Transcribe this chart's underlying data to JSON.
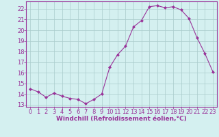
{
  "hours": [
    0,
    1,
    2,
    3,
    4,
    5,
    6,
    7,
    8,
    9,
    10,
    11,
    12,
    13,
    14,
    15,
    16,
    17,
    18,
    19,
    20,
    21,
    22,
    23
  ],
  "values": [
    14.5,
    14.2,
    13.7,
    14.1,
    13.8,
    13.6,
    13.5,
    13.1,
    13.5,
    14.0,
    16.5,
    17.7,
    18.5,
    20.3,
    20.9,
    22.2,
    22.3,
    22.1,
    22.2,
    21.9,
    21.1,
    19.3,
    17.8,
    16.1
  ],
  "line_color": "#993399",
  "marker": "D",
  "marker_size": 2,
  "bg_color": "#d4f0f0",
  "grid_color": "#aacccc",
  "xlabel": "Windchill (Refroidissement éolien,°C)",
  "ylim": [
    12.8,
    22.7
  ],
  "xlim": [
    -0.5,
    23.5
  ],
  "yticks": [
    13,
    14,
    15,
    16,
    17,
    18,
    19,
    20,
    21,
    22
  ],
  "xticks": [
    0,
    1,
    2,
    3,
    4,
    5,
    6,
    7,
    8,
    9,
    10,
    11,
    12,
    13,
    14,
    15,
    16,
    17,
    18,
    19,
    20,
    21,
    22,
    23
  ],
  "label_color": "#993399",
  "tick_color": "#993399",
  "spine_color": "#993399",
  "font_size_label": 6.5,
  "font_size_tick": 6
}
